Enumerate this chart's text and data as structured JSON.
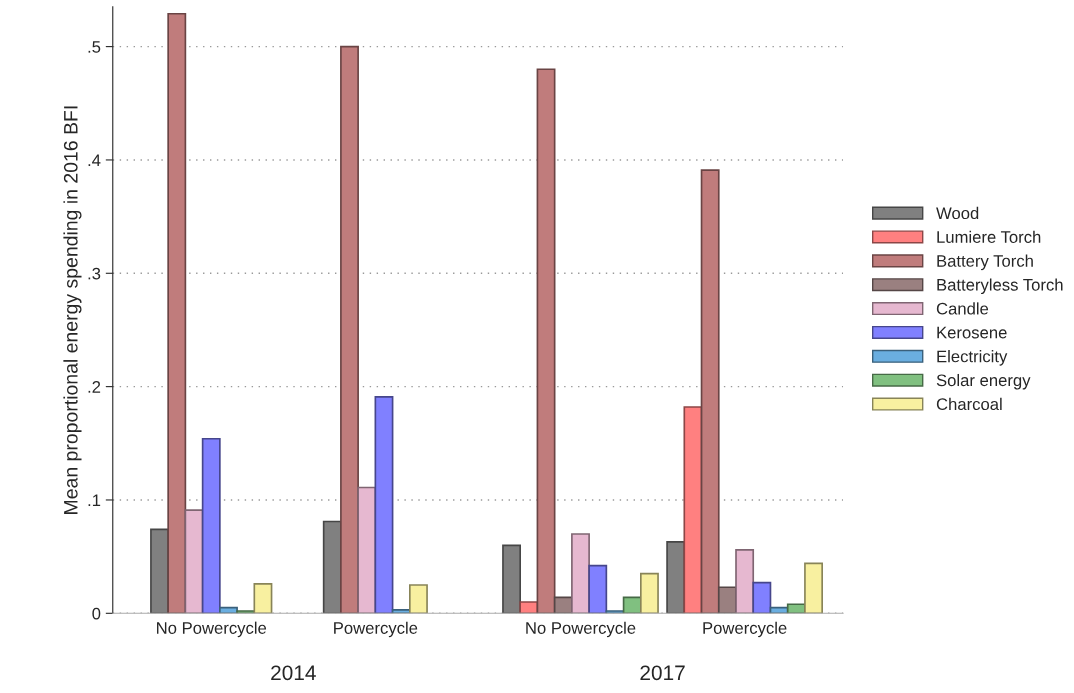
{
  "chart_data": {
    "type": "bar",
    "ylabel": "Mean proportional energy spending in 2016 BFI",
    "categories": [
      "No Powercycle",
      "Powercycle",
      "No Powercycle",
      "Powercycle"
    ],
    "annotations": [
      "2014",
      "2017"
    ],
    "series": [
      {
        "name": "Wood",
        "color": "#808080",
        "values": [
          0.074,
          0.081,
          0.06,
          0.063
        ]
      },
      {
        "name": "Lumiere Torch",
        "color": "#ff8080",
        "values": [
          null,
          null,
          0.01,
          0.182
        ]
      },
      {
        "name": "Battery Torch",
        "color": "#c07c7c",
        "values": [
          0.529,
          0.5,
          0.48,
          0.391
        ]
      },
      {
        "name": "Batteryless Torch",
        "color": "#9a8080",
        "values": [
          null,
          null,
          0.014,
          0.023
        ]
      },
      {
        "name": "Candle",
        "color": "#e6b8d0",
        "values": [
          0.091,
          0.111,
          0.07,
          0.056
        ]
      },
      {
        "name": "Kerosene",
        "color": "#8080ff",
        "values": [
          0.154,
          0.191,
          0.042,
          0.027
        ]
      },
      {
        "name": "Electricity",
        "color": "#6aaee0",
        "values": [
          0.005,
          0.003,
          0.002,
          0.005
        ]
      },
      {
        "name": "Solar energy",
        "color": "#80c080",
        "values": [
          0.002,
          null,
          0.014,
          0.008
        ]
      },
      {
        "name": "Charcoal",
        "color": "#f8f0a0",
        "values": [
          0.026,
          0.025,
          0.035,
          0.044
        ]
      }
    ],
    "ylim": [
      0,
      0.535
    ],
    "yticks": [
      0,
      {
        "value": 0.1,
        "label": ".1"
      },
      {
        "value": 0.2,
        "label": ".2"
      },
      {
        "value": 0.3,
        "label": ".3"
      },
      {
        "value": 0.4,
        "label": ".4"
      },
      {
        "value": 0.5,
        "label": ".5"
      }
    ],
    "grid": "y",
    "legend": "right"
  }
}
